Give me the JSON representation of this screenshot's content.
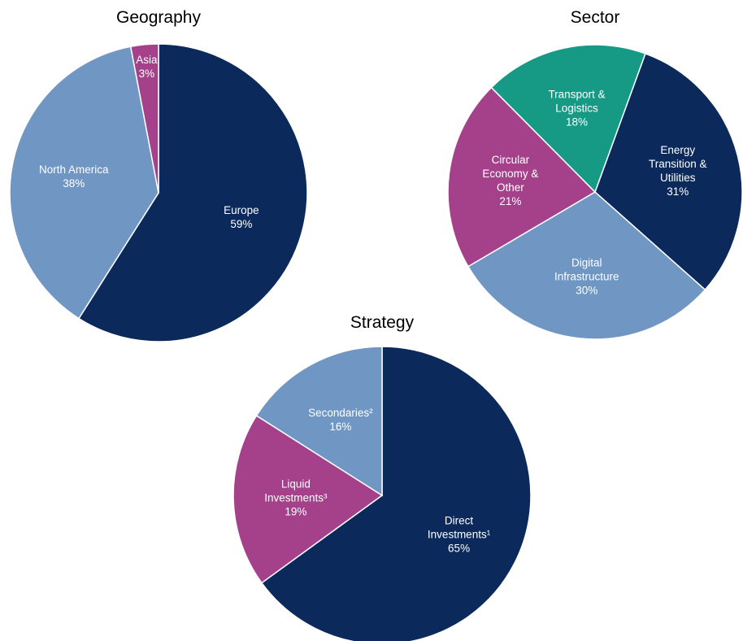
{
  "chart_data": [
    {
      "type": "pie",
      "title": "Geography",
      "categories": [
        "Europe",
        "North America",
        "Asia"
      ],
      "values": [
        59,
        38,
        3
      ],
      "value_labels": [
        "59%",
        "38%",
        "3%"
      ],
      "colors": [
        "#0b2a5b",
        "#7096c4",
        "#a4418a"
      ]
    },
    {
      "type": "pie",
      "title": "Sector",
      "categories": [
        "Energy Transition & Utilities",
        "Digital Infrastructure",
        "Circular Economy & Other",
        "Transport & Logistics"
      ],
      "values": [
        31,
        30,
        21,
        18
      ],
      "value_labels": [
        "31%",
        "30%",
        "21%",
        "18%"
      ],
      "colors": [
        "#0b2a5b",
        "#7096c4",
        "#a4418a",
        "#169a86"
      ]
    },
    {
      "type": "pie",
      "title": "Strategy",
      "categories": [
        "Direct Investments¹",
        "Liquid Investments³",
        "Secondaries²"
      ],
      "values": [
        65,
        19,
        16
      ],
      "value_labels": [
        "65%",
        "19%",
        "16%"
      ],
      "colors": [
        "#0b2a5b",
        "#a4418a",
        "#7096c4"
      ]
    }
  ]
}
